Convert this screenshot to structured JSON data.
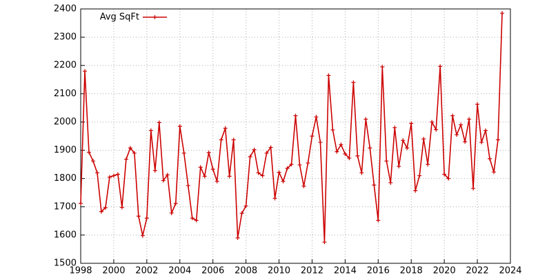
{
  "chart_data": {
    "type": "line",
    "x": [
      1998,
      1998.25,
      1998.5,
      1998.75,
      1999,
      1999.25,
      1999.5,
      1999.75,
      2000,
      2000.25,
      2000.5,
      2000.75,
      2001,
      2001.25,
      2001.5,
      2001.75,
      2002,
      2002.25,
      2002.5,
      2002.75,
      2003,
      2003.25,
      2003.5,
      2003.75,
      2004,
      2004.25,
      2004.5,
      2004.75,
      2005,
      2005.25,
      2005.5,
      2005.75,
      2006,
      2006.25,
      2006.5,
      2006.75,
      2007,
      2007.25,
      2007.5,
      2007.75,
      2008,
      2008.25,
      2008.5,
      2008.75,
      2009,
      2009.25,
      2009.5,
      2009.75,
      2010,
      2010.25,
      2010.5,
      2010.75,
      2011,
      2011.25,
      2011.5,
      2011.75,
      2012,
      2012.25,
      2012.5,
      2012.75,
      2013,
      2013.25,
      2013.5,
      2013.75,
      2014,
      2014.25,
      2014.5,
      2014.75,
      2015,
      2015.25,
      2015.5,
      2015.75,
      2016,
      2016.25,
      2016.5,
      2016.75,
      2017,
      2017.25,
      2017.5,
      2017.75,
      2018,
      2018.25,
      2018.5,
      2018.75,
      2019,
      2019.25,
      2019.5,
      2019.75,
      2020,
      2020.25,
      2020.5,
      2020.75,
      2021,
      2021.25,
      2021.5,
      2021.75,
      2022,
      2022.25,
      2022.5,
      2022.75,
      2023,
      2023.25,
      2023.5
    ],
    "series": [
      {
        "name": "Avg SqFt",
        "color": "#cc0000",
        "values": [
          1712,
          2180,
          1893,
          1862,
          1820,
          1683,
          1697,
          1805,
          1810,
          1815,
          1698,
          1868,
          1908,
          1890,
          1667,
          1598,
          1660,
          1970,
          1828,
          1998,
          1793,
          1813,
          1678,
          1712,
          1985,
          1890,
          1775,
          1660,
          1652,
          1840,
          1808,
          1892,
          1833,
          1790,
          1937,
          1978,
          1808,
          1937,
          1590,
          1677,
          1703,
          1877,
          1902,
          1820,
          1810,
          1890,
          1910,
          1730,
          1822,
          1790,
          1836,
          1850,
          2022,
          1848,
          1773,
          1855,
          1950,
          2018,
          1928,
          1575,
          2165,
          1972,
          1895,
          1920,
          1887,
          1872,
          2140,
          1880,
          1820,
          2010,
          1908,
          1777,
          1652,
          2195,
          1862,
          1785,
          1980,
          1843,
          1935,
          1908,
          1995,
          1757,
          1810,
          1940,
          1850,
          2000,
          1973,
          2197,
          1815,
          1800,
          2022,
          1955,
          1990,
          1930,
          2010,
          1765,
          2063,
          1928,
          1970,
          1870,
          1823,
          1937,
          2385
        ]
      }
    ],
    "xlim": [
      1998,
      2024
    ],
    "xticks": [
      1998,
      2000,
      2002,
      2004,
      2006,
      2008,
      2010,
      2012,
      2014,
      2016,
      2018,
      2020,
      2022,
      2024
    ],
    "ylim": [
      1500,
      2400
    ],
    "yticks": [
      1500,
      1600,
      1700,
      1800,
      1900,
      2000,
      2100,
      2200,
      2300,
      2400
    ],
    "grid": true,
    "legend": "top-left"
  }
}
